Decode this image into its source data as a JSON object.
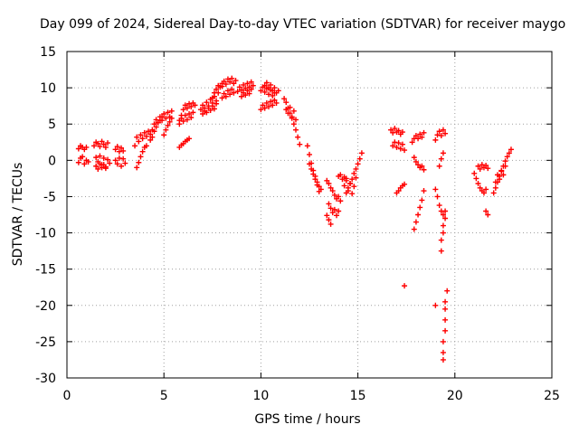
{
  "chart_data": {
    "type": "scatter",
    "title": "Day 099 of 2024, Sidereal Day-to-day VTEC variation (SDTVAR) for receiver maygo",
    "xlabel": "GPS time / hours",
    "ylabel": "SDTVAR / TECUs",
    "xlim": [
      0,
      25
    ],
    "ylim": [
      -30,
      15
    ],
    "xticks": [
      0,
      5,
      10,
      15,
      20,
      25
    ],
    "yticks": [
      -30,
      -25,
      -20,
      -15,
      -10,
      -5,
      0,
      5,
      10,
      15
    ],
    "grid": true,
    "marker": "+",
    "color": "#ff0000",
    "series": [
      {
        "name": "SDTVAR",
        "segments": [
          {
            "x": [
              0.6,
              0.7,
              0.8,
              0.9,
              1.0
            ],
            "y": [
              1.6,
              2.0,
              1.8,
              1.5,
              1.8
            ]
          },
          {
            "x": [
              0.6,
              0.7,
              0.8,
              0.9,
              1.0,
              1.1
            ],
            "y": [
              -0.3,
              0.3,
              0.5,
              -0.5,
              0.0,
              -0.2
            ]
          },
          {
            "x": [
              1.4,
              1.5,
              1.6,
              1.7,
              1.8,
              1.9,
              2.0,
              2.1
            ],
            "y": [
              2.0,
              2.5,
              2.3,
              1.9,
              2.6,
              2.2,
              1.8,
              2.4
            ]
          },
          {
            "x": [
              1.5,
              1.6,
              1.7,
              1.8,
              1.9,
              2.0,
              2.1,
              2.2
            ],
            "y": [
              0.4,
              -0.2,
              0.6,
              -0.6,
              0.3,
              -0.9,
              0.1,
              -0.4
            ]
          },
          {
            "x": [
              1.5,
              1.6,
              1.7,
              1.8,
              1.9,
              2.0
            ],
            "y": [
              -0.8,
              -1.2,
              -0.5,
              -1.0,
              -0.6,
              -1.1
            ]
          },
          {
            "x": [
              2.5,
              2.6,
              2.7,
              2.8,
              2.9
            ],
            "y": [
              1.5,
              1.9,
              1.2,
              1.7,
              1.3
            ]
          },
          {
            "x": [
              2.5,
              2.6,
              2.7,
              2.8,
              2.9,
              3.0
            ],
            "y": [
              0.0,
              -0.5,
              0.3,
              -0.8,
              0.2,
              -0.4
            ]
          },
          {
            "x": [
              3.5,
              3.6,
              3.7,
              3.8,
              3.9,
              4.0,
              4.1,
              4.2,
              4.3,
              4.4
            ],
            "y": [
              2.0,
              3.2,
              2.6,
              3.5,
              3.0,
              3.8,
              3.3,
              4.0,
              3.6,
              4.2
            ]
          },
          {
            "x": [
              3.6,
              3.7,
              3.8,
              3.9,
              4.0,
              4.1
            ],
            "y": [
              -1.0,
              -0.3,
              0.5,
              1.2,
              1.8,
              2.0
            ]
          },
          {
            "x": [
              4.3,
              4.4,
              4.5,
              4.6,
              4.7,
              4.8,
              4.9
            ],
            "y": [
              2.8,
              3.2,
              4.0,
              4.6,
              5.2,
              5.5,
              6.0
            ]
          },
          {
            "x": [
              4.5,
              4.6,
              4.7,
              4.8,
              4.9,
              5.0,
              5.1,
              5.2,
              5.3,
              5.4
            ],
            "y": [
              5.0,
              5.6,
              5.2,
              6.0,
              5.5,
              6.4,
              5.8,
              6.6,
              6.0,
              6.8
            ]
          },
          {
            "x": [
              5.0,
              5.1,
              5.2,
              5.3,
              5.4
            ],
            "y": [
              3.5,
              4.2,
              4.8,
              5.3,
              5.8
            ]
          },
          {
            "x": [
              5.8,
              5.9,
              6.0,
              6.1,
              6.2,
              6.3,
              6.4,
              6.5,
              6.6
            ],
            "y": [
              5.5,
              6.2,
              7.0,
              7.6,
              7.2,
              7.8,
              7.4,
              7.9,
              7.6
            ]
          },
          {
            "x": [
              5.8,
              5.9,
              6.0,
              6.1,
              6.2,
              6.3,
              6.4,
              6.5
            ],
            "y": [
              5.0,
              5.8,
              5.4,
              6.2,
              5.6,
              6.4,
              5.9,
              6.6
            ]
          },
          {
            "x": [
              5.8,
              5.9,
              6.0,
              6.1,
              6.2,
              6.3
            ],
            "y": [
              1.8,
              2.1,
              2.3,
              2.6,
              2.8,
              3.0
            ]
          },
          {
            "x": [
              6.9,
              7.0,
              7.1,
              7.2,
              7.3,
              7.4,
              7.5,
              7.6,
              7.7,
              7.8
            ],
            "y": [
              7.0,
              7.6,
              7.2,
              8.0,
              7.5,
              8.4,
              7.9,
              8.8,
              8.2,
              9.3
            ]
          },
          {
            "x": [
              7.0,
              7.1,
              7.2,
              7.3,
              7.4,
              7.5,
              7.6,
              7.7
            ],
            "y": [
              6.4,
              6.8,
              6.6,
              7.2,
              6.9,
              7.5,
              7.1,
              7.8
            ]
          },
          {
            "x": [
              7.5,
              7.6,
              7.7,
              7.8,
              7.9,
              8.0
            ],
            "y": [
              8.6,
              9.3,
              9.8,
              10.3,
              10.1,
              10.6
            ]
          },
          {
            "x": [
              8.0,
              8.1,
              8.2,
              8.3,
              8.4,
              8.5,
              8.6,
              8.7
            ],
            "y": [
              10.2,
              10.9,
              10.5,
              11.2,
              10.8,
              11.3,
              10.6,
              11.0
            ]
          },
          {
            "x": [
              8.0,
              8.1,
              8.2,
              8.3,
              8.4,
              8.5,
              8.6
            ],
            "y": [
              8.6,
              9.2,
              8.8,
              9.6,
              9.1,
              9.8,
              9.3
            ]
          },
          {
            "x": [
              8.8,
              8.9,
              9.0,
              9.1,
              9.2,
              9.3,
              9.4,
              9.5,
              9.6
            ],
            "y": [
              9.5,
              10.1,
              9.7,
              10.4,
              9.9,
              10.6,
              10.1,
              10.8,
              10.3
            ]
          },
          {
            "x": [
              9.0,
              9.1,
              9.2,
              9.3,
              9.4,
              9.5
            ],
            "y": [
              8.8,
              9.3,
              9.0,
              9.6,
              9.2,
              9.8
            ]
          },
          {
            "x": [
              10.0,
              10.1,
              10.2,
              10.3,
              10.4,
              10.5,
              10.6,
              10.7
            ],
            "y": [
              9.6,
              10.1,
              9.4,
              9.9,
              9.1,
              9.7,
              8.9,
              9.3
            ]
          },
          {
            "x": [
              10.2,
              10.3,
              10.4,
              10.5,
              10.6,
              10.7,
              10.8,
              10.9
            ],
            "y": [
              10.3,
              10.7,
              10.0,
              10.4,
              9.6,
              10.0,
              9.3,
              9.6
            ]
          },
          {
            "x": [
              10.0,
              10.1,
              10.2,
              10.3,
              10.4,
              10.5,
              10.6,
              10.7,
              10.8
            ],
            "y": [
              7.0,
              7.6,
              7.2,
              7.9,
              7.4,
              8.1,
              7.6,
              8.3,
              7.9
            ]
          },
          {
            "x": [
              11.2,
              11.3,
              11.4,
              11.5,
              11.6,
              11.7,
              11.8,
              11.9,
              12.0
            ],
            "y": [
              8.5,
              8.0,
              7.2,
              6.5,
              5.8,
              5.0,
              4.2,
              3.2,
              2.2
            ]
          },
          {
            "x": [
              11.3,
              11.4,
              11.5,
              11.6,
              11.7,
              11.8
            ],
            "y": [
              7.0,
              6.5,
              7.3,
              6.0,
              6.8,
              5.6
            ]
          },
          {
            "x": [
              12.4,
              12.5,
              12.6,
              12.7,
              12.8,
              12.9,
              13.0,
              13.1
            ],
            "y": [
              2.0,
              0.8,
              -0.4,
              -1.4,
              -2.2,
              -3.0,
              -3.6,
              -4.0
            ]
          },
          {
            "x": [
              12.5,
              12.6,
              12.7,
              12.8,
              12.9,
              13.0
            ],
            "y": [
              -0.5,
              -1.2,
              -1.9,
              -2.6,
              -3.4,
              -4.3
            ]
          },
          {
            "x": [
              13.4,
              13.5,
              13.6,
              13.7,
              13.8,
              13.9,
              14.0,
              14.1
            ],
            "y": [
              -2.8,
              -3.2,
              -3.8,
              -4.2,
              -4.8,
              -5.3,
              -5.0,
              -5.6
            ]
          },
          {
            "x": [
              13.5,
              13.6,
              13.7,
              13.8,
              13.9,
              14.0
            ],
            "y": [
              -6.0,
              -6.6,
              -7.2,
              -6.8,
              -7.6,
              -7.0
            ]
          },
          {
            "x": [
              13.4,
              13.5,
              13.6
            ],
            "y": [
              -7.6,
              -8.2,
              -8.8
            ]
          },
          {
            "x": [
              14.0,
              14.1,
              14.2,
              14.3,
              14.4
            ],
            "y": [
              -2.2,
              -2.0,
              -2.6,
              -2.3,
              -2.5
            ]
          },
          {
            "x": [
              14.4,
              14.5,
              14.6,
              14.7,
              14.8,
              14.9,
              15.0,
              15.1,
              15.2
            ],
            "y": [
              -4.5,
              -3.8,
              -3.2,
              -2.6,
              -1.8,
              -1.2,
              -0.5,
              0.2,
              1.0
            ]
          },
          {
            "x": [
              14.3,
              14.4,
              14.5,
              14.6,
              14.7,
              14.8,
              14.9
            ],
            "y": [
              -3.5,
              -2.8,
              -4.2,
              -3.2,
              -4.6,
              -3.6,
              -2.4
            ]
          },
          {
            "x": [
              16.7,
              16.8,
              16.9,
              17.0,
              17.1,
              17.2,
              17.3
            ],
            "y": [
              4.2,
              3.8,
              4.4,
              3.9,
              4.1,
              3.6,
              3.9
            ]
          },
          {
            "x": [
              16.8,
              16.9,
              17.0,
              17.1,
              17.2,
              17.3,
              17.4
            ],
            "y": [
              2.0,
              2.5,
              1.8,
              2.4,
              1.6,
              2.2,
              1.4
            ]
          },
          {
            "x": [
              17.0,
              17.1,
              17.2,
              17.3,
              17.4
            ],
            "y": [
              -4.5,
              -4.2,
              -3.8,
              -3.5,
              -3.3
            ]
          },
          {
            "x": [
              17.4
            ],
            "y": [
              -17.3
            ]
          },
          {
            "x": [
              17.8,
              17.9,
              18.0,
              18.1,
              18.2,
              18.3,
              18.4
            ],
            "y": [
              2.5,
              3.0,
              3.4,
              3.0,
              3.6,
              3.2,
              3.8
            ]
          },
          {
            "x": [
              17.9,
              18.0,
              18.1,
              18.2,
              18.3,
              18.4
            ],
            "y": [
              0.4,
              -0.2,
              -0.6,
              -1.0,
              -0.8,
              -1.3
            ]
          },
          {
            "x": [
              17.9,
              18.0,
              18.1,
              18.2,
              18.3,
              18.4
            ],
            "y": [
              -9.5,
              -8.5,
              -7.5,
              -6.5,
              -5.5,
              -4.2
            ]
          },
          {
            "x": [
              19.0
            ],
            "y": [
              -20.0
            ]
          },
          {
            "x": [
              19.0,
              19.1,
              19.2,
              19.3,
              19.4,
              19.5
            ],
            "y": [
              2.8,
              3.5,
              4.0,
              3.4,
              4.2,
              3.7
            ]
          },
          {
            "x": [
              19.0,
              19.1,
              19.2,
              19.3,
              19.4
            ],
            "y": [
              -4.0,
              -5.0,
              -6.2,
              -7.0,
              -7.5
            ]
          },
          {
            "x": [
              19.2,
              19.3,
              19.4
            ],
            "y": [
              -0.8,
              0.2,
              1.0
            ]
          },
          {
            "x": [
              19.3,
              19.3,
              19.4,
              19.4,
              19.5,
              19.5
            ],
            "y": [
              -12.5,
              -11.0,
              -10.0,
              -9.0,
              -8.0,
              -7.0
            ]
          },
          {
            "x": [
              19.4,
              19.4,
              19.4,
              19.5,
              19.5,
              19.5,
              19.5,
              19.6
            ],
            "y": [
              -27.5,
              -26.5,
              -25.0,
              -23.5,
              -22.0,
              -20.5,
              -19.5,
              -18.0
            ]
          },
          {
            "x": [
              21.0,
              21.1,
              21.2,
              21.3,
              21.4,
              21.5,
              21.6
            ],
            "y": [
              -1.8,
              -2.5,
              -3.2,
              -3.8,
              -4.2,
              -4.5,
              -4.0
            ]
          },
          {
            "x": [
              21.2,
              21.3,
              21.4,
              21.5,
              21.6,
              21.7
            ],
            "y": [
              -0.8,
              -1.2,
              -0.6,
              -1.0,
              -0.7,
              -1.1
            ]
          },
          {
            "x": [
              21.6,
              21.7
            ],
            "y": [
              -7.0,
              -7.5
            ]
          },
          {
            "x": [
              22.0,
              22.1,
              22.2,
              22.3,
              22.4,
              22.5,
              22.6,
              22.7,
              22.8,
              22.9
            ],
            "y": [
              -4.5,
              -3.8,
              -3.0,
              -2.2,
              -1.5,
              -0.8,
              -0.1,
              0.5,
              1.0,
              1.5
            ]
          },
          {
            "x": [
              22.1,
              22.2,
              22.3,
              22.4,
              22.5,
              22.6
            ],
            "y": [
              -3.0,
              -2.0,
              -2.6,
              -1.4,
              -2.0,
              -0.8
            ]
          }
        ]
      }
    ]
  }
}
